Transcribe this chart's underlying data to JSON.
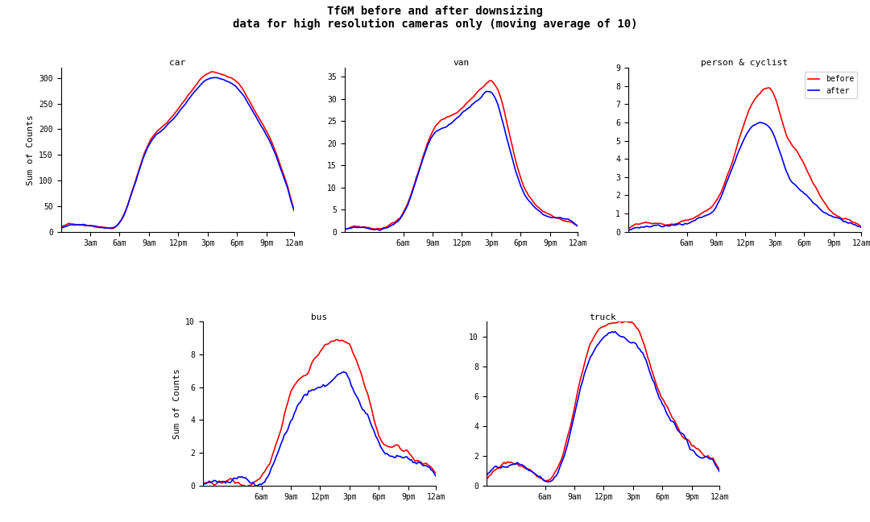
{
  "title_line1": "TfGM before and after downsizing",
  "title_line2": "data for high resolution cameras only (moving average of 10)",
  "color_before": "red",
  "color_after": "blue",
  "ylabel": "Sum of Counts",
  "legend_labels": [
    "before",
    "after"
  ],
  "tick_labels_car": [
    "3am",
    "6am",
    "9am",
    "12pm",
    "3pm",
    "6pm",
    "9pm",
    "12am"
  ],
  "tick_labels_rest": [
    "6am",
    "9am",
    "12pm",
    "3pm",
    "6pm",
    "9pm",
    "12am"
  ]
}
